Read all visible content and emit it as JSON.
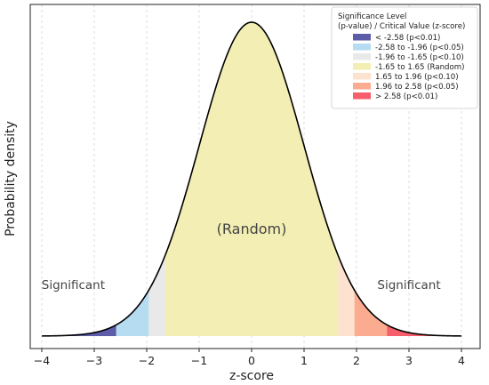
{
  "chart_data": {
    "type": "area",
    "xlabel": "z-score",
    "ylabel": "Probability density",
    "xlim": [
      -4,
      4
    ],
    "ylim": [
      0,
      0.4
    ],
    "x_ticks": [
      -4,
      -3,
      -2,
      -1,
      0,
      1,
      2,
      3,
      4
    ],
    "x_tick_labels": [
      "−4",
      "−3",
      "−2",
      "−1",
      "0",
      "1",
      "2",
      "3",
      "4"
    ],
    "grid": "vertical",
    "curve": "standard normal density",
    "legend": {
      "placement": "top-right",
      "title_line1": "Significance Level",
      "title_line2": "(p-value) / Critical Value (z-score)"
    },
    "regions": [
      {
        "label": "< -2.58 (p<0.01)",
        "from": -4,
        "to": -2.58,
        "color": "#5c5ca8"
      },
      {
        "label": "-2.58 to -1.96 (p<0.05)",
        "from": -2.58,
        "to": -1.96,
        "color": "#b5dcf0"
      },
      {
        "label": "-1.96 to -1.65 (p<0.10)",
        "from": -1.96,
        "to": -1.65,
        "color": "#e9e9e9"
      },
      {
        "label": "-1.65 to 1.65 (Random)",
        "from": -1.65,
        "to": 1.65,
        "color": "#f3eeb3"
      },
      {
        "label": "1.65 to 1.96 (p<0.10)",
        "from": 1.65,
        "to": 1.96,
        "color": "#fde3cf"
      },
      {
        "label": "1.96 to 2.58 (p<0.05)",
        "from": 1.96,
        "to": 2.58,
        "color": "#fbac90"
      },
      {
        "label": "> 2.58 (p<0.01)",
        "from": 2.58,
        "to": 4,
        "color": "#f55e6a"
      }
    ],
    "annotations": [
      {
        "text": "Significant",
        "x": -3.4,
        "y": 0.06
      },
      {
        "text": "(Random)",
        "x": 0,
        "y": 0.13
      },
      {
        "text": "Significant",
        "x": 3.0,
        "y": 0.06
      }
    ]
  }
}
